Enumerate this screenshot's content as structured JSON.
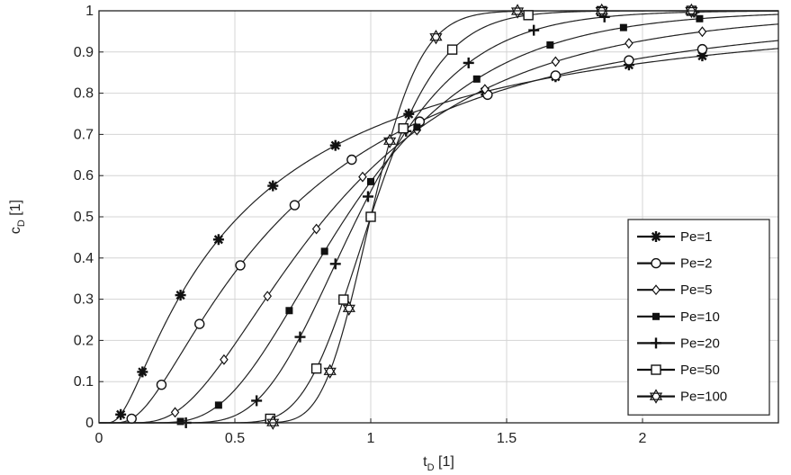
{
  "chart_data": {
    "type": "line",
    "xlabel": "t",
    "xlabel_sub": "D",
    "xlabel_unit": " [1]",
    "ylabel": "c",
    "ylabel_sub": "D",
    "ylabel_unit": " [1]",
    "xlim": [
      0,
      2.5
    ],
    "ylim": [
      0,
      1
    ],
    "x_ticks": [
      0,
      0.5,
      1,
      1.5,
      2
    ],
    "x_tick_labels": [
      "0",
      "0.5",
      "1",
      "1.5",
      "2"
    ],
    "y_ticks": [
      0,
      0.1,
      0.2,
      0.3,
      0.4,
      0.5,
      0.6,
      0.7,
      0.8,
      0.9,
      1
    ],
    "y_tick_labels": [
      "0",
      "0.1",
      "0.2",
      "0.3",
      "0.4",
      "0.5",
      "0.6",
      "0.7",
      "0.8",
      "0.9",
      "1"
    ],
    "grid": true,
    "legend_position": "bottom-right",
    "series": [
      {
        "name": "Pe=1",
        "pe": 1,
        "marker": "asterisk",
        "marker_x": [
          0.08,
          0.16,
          0.3,
          0.44,
          0.64,
          0.87,
          1.14,
          1.42,
          1.68,
          1.95,
          2.22
        ]
      },
      {
        "name": "Pe=2",
        "pe": 2,
        "marker": "circle",
        "marker_x": [
          0.12,
          0.23,
          0.37,
          0.52,
          0.72,
          0.93,
          1.18,
          1.43,
          1.68,
          1.95,
          2.22
        ]
      },
      {
        "name": "Pe=5",
        "pe": 5,
        "marker": "diamond",
        "marker_x": [
          0.28,
          0.46,
          0.62,
          0.8,
          0.97,
          1.17,
          1.42,
          1.68,
          1.95,
          2.22
        ]
      },
      {
        "name": "Pe=10",
        "pe": 10,
        "marker": "square-filled",
        "marker_x": [
          0.3,
          0.44,
          0.7,
          0.83,
          1.0,
          1.17,
          1.39,
          1.66,
          1.93,
          2.21
        ]
      },
      {
        "name": "Pe=20",
        "pe": 20,
        "marker": "plus",
        "marker_x": [
          0.32,
          0.58,
          0.74,
          0.87,
          0.99,
          1.13,
          1.36,
          1.6,
          1.86,
          2.19
        ]
      },
      {
        "name": "Pe=50",
        "pe": 50,
        "marker": "square-open",
        "marker_x": [
          0.63,
          0.8,
          0.9,
          1.0,
          1.12,
          1.3,
          1.58,
          1.85,
          2.18
        ]
      },
      {
        "name": "Pe=100",
        "pe": 100,
        "marker": "star",
        "marker_x": [
          0.64,
          0.85,
          0.92,
          1.07,
          1.24,
          1.54,
          1.85,
          2.18
        ]
      }
    ]
  }
}
